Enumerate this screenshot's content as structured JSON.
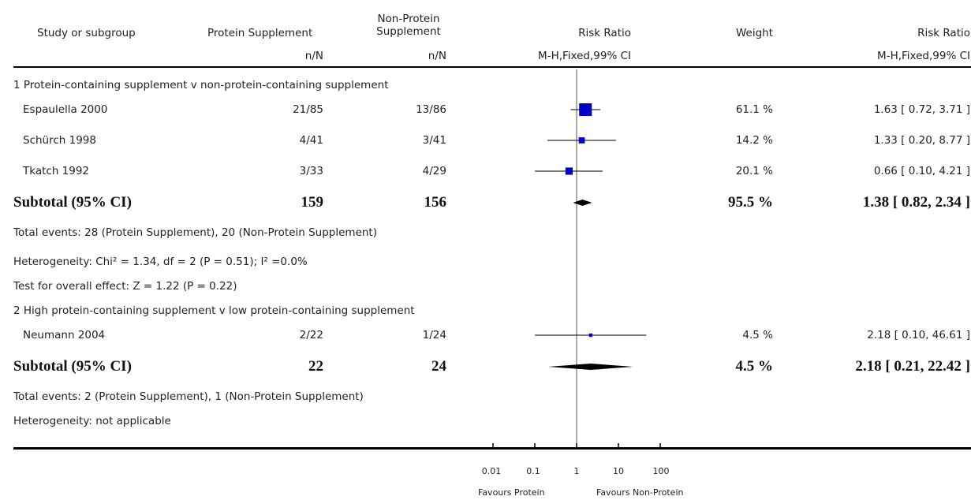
{
  "header": {
    "study": "Study or subgroup",
    "protein": "Protein Supplement",
    "nonprotein_line1": "Non-Protein",
    "nonprotein_line2": "Supplement",
    "rr_plot": "Risk Ratio",
    "weight": "Weight",
    "rr_value": "Risk Ratio",
    "protein_sub": "n/N",
    "nonprotein_sub": "n/N",
    "rr_plot_sub": "M-H,Fixed,99% CI",
    "rr_value_sub": "M-H,Fixed,99% CI"
  },
  "groups": [
    {
      "title": "1 Protein-containing supplement v non-protein-containing supplement",
      "studies": [
        {
          "name": "Espaulella 2000",
          "protein": "21/85",
          "nonprotein": "13/86",
          "weight": "61.1 %",
          "rr_text": "1.63 [ 0.72, 3.71 ]"
        },
        {
          "name": "Schürch 1998",
          "protein": "4/41",
          "nonprotein": "3/41",
          "weight": "14.2 %",
          "rr_text": "1.33 [ 0.20, 8.77 ]"
        },
        {
          "name": "Tkatch 1992",
          "protein": "3/33",
          "nonprotein": "4/29",
          "weight": "20.1 %",
          "rr_text": "0.66 [ 0.10, 4.21 ]"
        }
      ],
      "subtotal": {
        "label": "Subtotal (95% CI)",
        "protein": "159",
        "nonprotein": "156",
        "weight": "95.5 %",
        "rr_text": "1.38 [ 0.82, 2.34 ]"
      },
      "notes": [
        "Total events: 28 (Protein Supplement), 20 (Non-Protein Supplement)",
        "Heterogeneity: Chi² = 1.34, df = 2 (P = 0.51); I² =0.0%",
        "Test for overall effect: Z = 1.22 (P = 0.22)"
      ]
    },
    {
      "title": "2 High protein-containing supplement v low protein-containing supplement",
      "studies": [
        {
          "name": "Neumann 2004",
          "protein": "2/22",
          "nonprotein": "1/24",
          "weight": "4.5 %",
          "rr_text": "2.18 [ 0.10, 46.61 ]"
        }
      ],
      "subtotal": {
        "label": "Subtotal (95% CI)",
        "protein": "22",
        "nonprotein": "24",
        "weight": "4.5 %",
        "rr_text": "2.18 [ 0.21, 22.42 ]"
      },
      "notes": [
        "Total events: 2 (Protein Supplement), 1 (Non-Protein Supplement)",
        "Heterogeneity: not applicable"
      ]
    }
  ],
  "axis": {
    "ticks": [
      "0.01",
      "0.1",
      "1",
      "10",
      "100"
    ],
    "favours_left": "Favours Protein",
    "favours_right": "Favours Non-Protein"
  },
  "colors": {
    "study_marker": "#0000cc",
    "diamond": "#000000",
    "line": "#000000"
  },
  "chart_data": {
    "type": "forest",
    "scale": "log",
    "xlim": [
      0.01,
      100
    ],
    "studies": [
      {
        "name": "Espaulella 2000",
        "rr": 1.63,
        "lo": 0.72,
        "hi": 3.71,
        "weight": 61.1
      },
      {
        "name": "Schürch 1998",
        "rr": 1.33,
        "lo": 0.2,
        "hi": 8.77,
        "weight": 14.2
      },
      {
        "name": "Tkatch 1992",
        "rr": 0.66,
        "lo": 0.1,
        "hi": 4.21,
        "weight": 20.1
      },
      {
        "name": "Neumann 2004",
        "rr": 2.18,
        "lo": 0.1,
        "hi": 46.61,
        "weight": 4.5
      }
    ],
    "subtotals": [
      {
        "rr": 1.38,
        "lo": 0.82,
        "hi": 2.34
      },
      {
        "rr": 2.18,
        "lo": 0.21,
        "hi": 22.42
      }
    ]
  }
}
